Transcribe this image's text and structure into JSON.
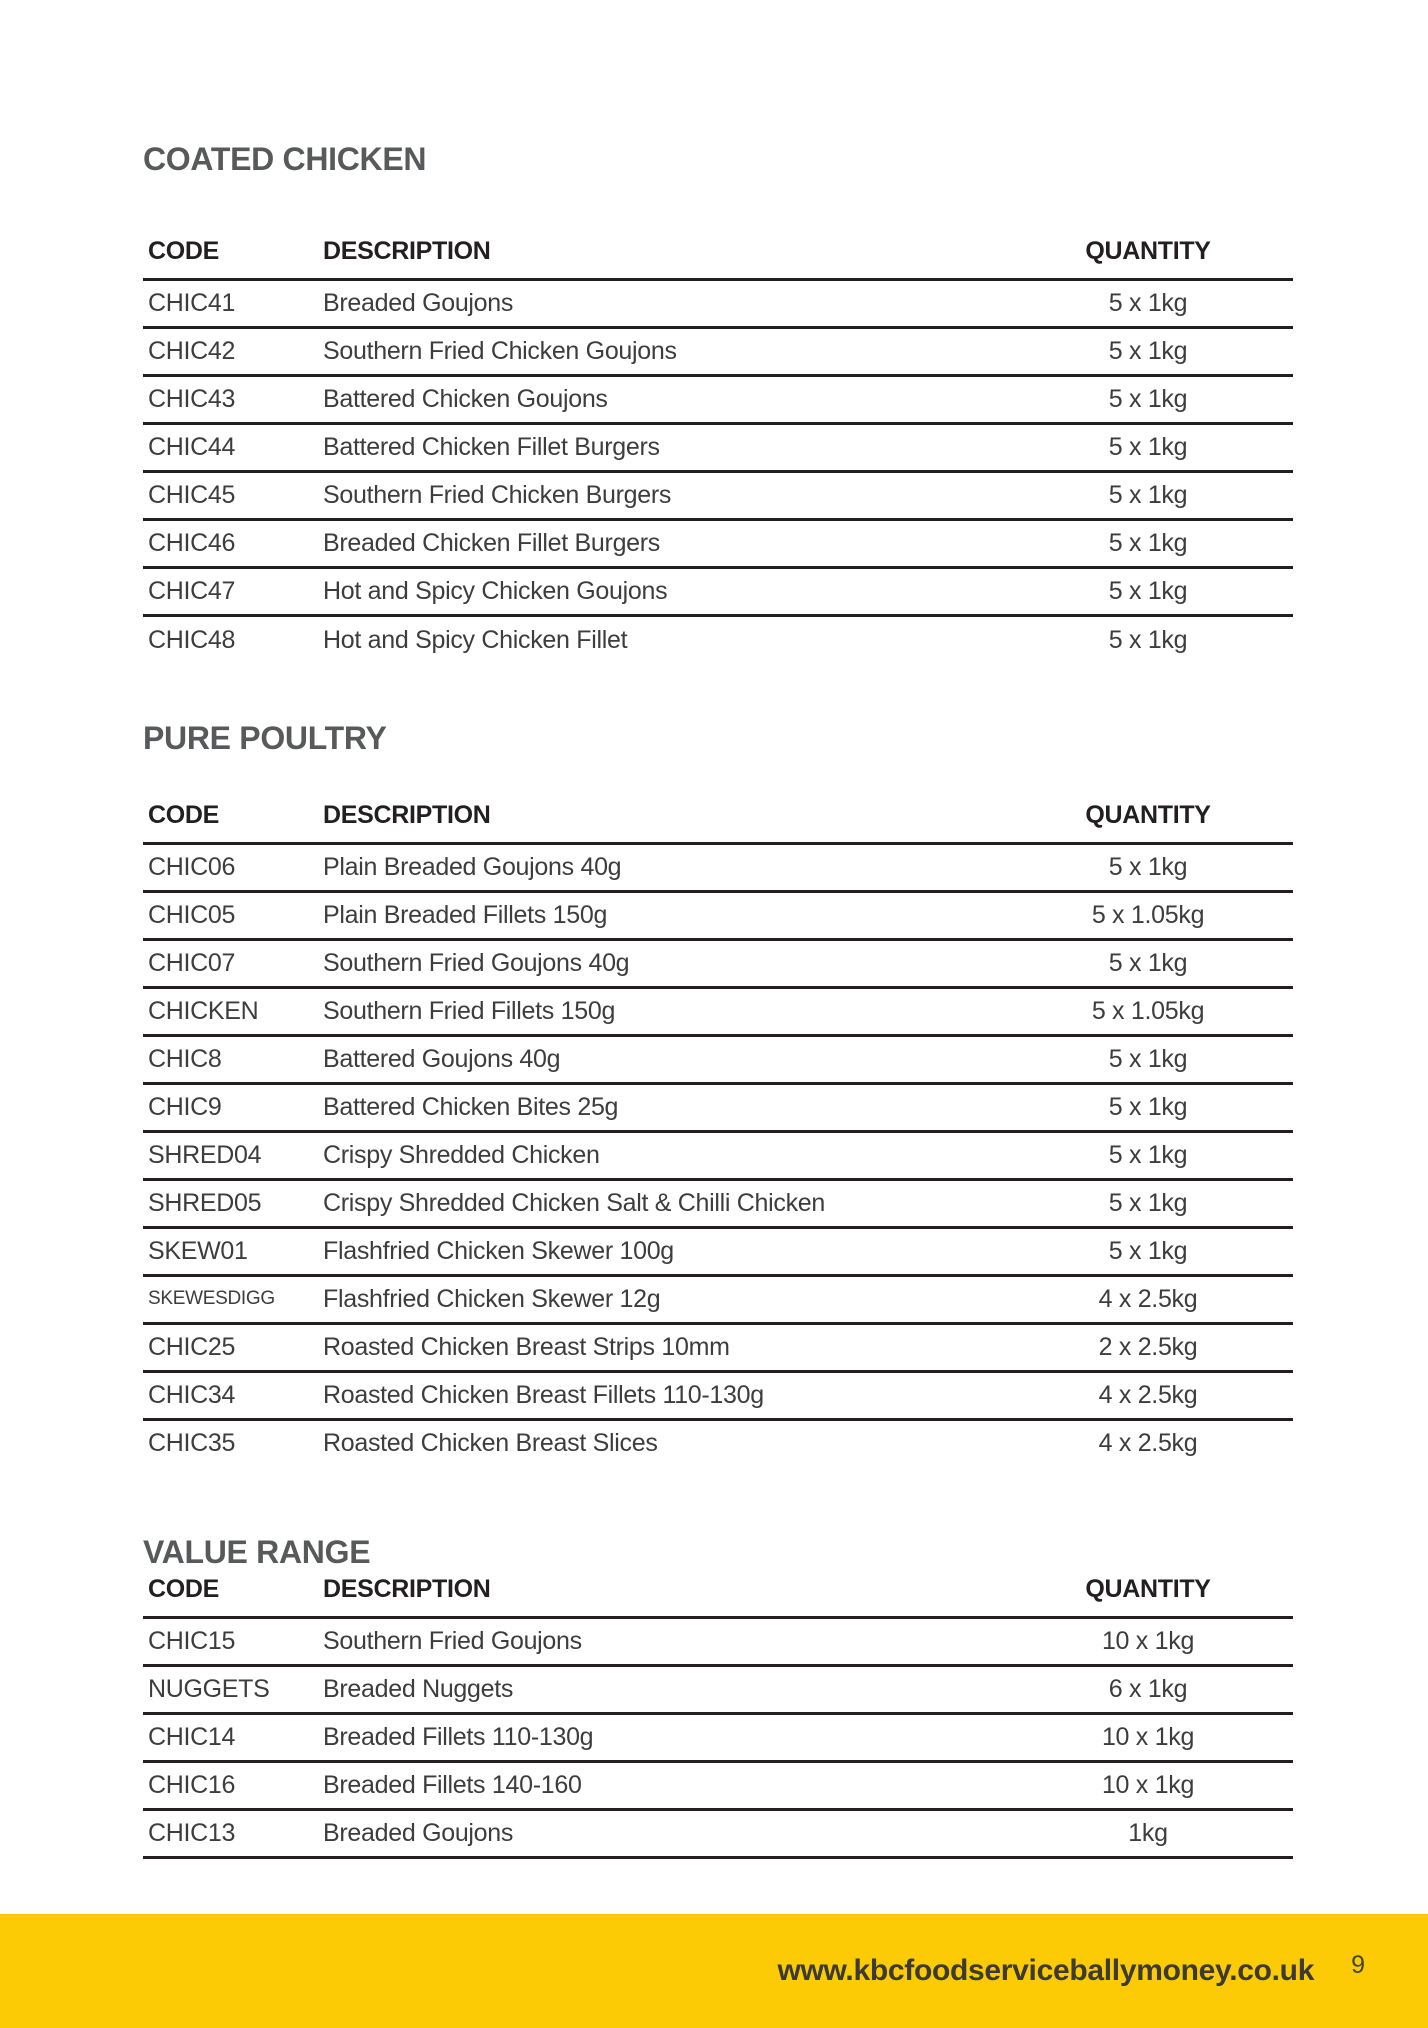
{
  "colors": {
    "accent_yellow": "#fccb06",
    "section_title_gray": "#58595b",
    "body_text_gray": "#3d3c3e",
    "rule_black": "#231f20"
  },
  "table_headers": {
    "code": "CODE",
    "description": "DESCRIPTION",
    "quantity": "QUANTITY"
  },
  "sections": [
    {
      "title": "COATED CHICKEN",
      "rows": [
        {
          "code": "CHIC41",
          "description": "Breaded Goujons",
          "quantity": "5 x 1kg"
        },
        {
          "code": "CHIC42",
          "description": "Southern Fried Chicken Goujons",
          "quantity": "5 x 1kg"
        },
        {
          "code": "CHIC43",
          "description": "Battered Chicken Goujons",
          "quantity": "5 x 1kg"
        },
        {
          "code": "CHIC44",
          "description": "Battered Chicken Fillet Burgers",
          "quantity": "5 x 1kg"
        },
        {
          "code": "CHIC45",
          "description": "Southern Fried Chicken Burgers",
          "quantity": "5 x 1kg"
        },
        {
          "code": "CHIC46",
          "description": "Breaded Chicken Fillet Burgers",
          "quantity": "5 x 1kg"
        },
        {
          "code": "CHIC47",
          "description": "Hot and Spicy Chicken Goujons",
          "quantity": "5 x 1kg"
        },
        {
          "code": "CHIC48",
          "description": "Hot and Spicy Chicken Fillet",
          "quantity": "5 x 1kg"
        }
      ]
    },
    {
      "title": "PURE POULTRY",
      "rows": [
        {
          "code": "CHIC06",
          "description": "Plain Breaded Goujons 40g",
          "quantity": "5 x 1kg"
        },
        {
          "code": "CHIC05",
          "description": "Plain Breaded Fillets 150g",
          "quantity": "5 x 1.05kg"
        },
        {
          "code": "CHIC07",
          "description": "Southern Fried Goujons 40g",
          "quantity": "5 x 1kg"
        },
        {
          "code": "CHICKEN",
          "description": "Southern Fried Fillets 150g",
          "quantity": "5 x 1.05kg"
        },
        {
          "code": "CHIC8",
          "description": "Battered Goujons 40g",
          "quantity": "5 x 1kg"
        },
        {
          "code": "CHIC9",
          "description": "Battered Chicken Bites 25g",
          "quantity": "5 x 1kg"
        },
        {
          "code": "SHRED04",
          "description": "Crispy Shredded Chicken",
          "quantity": "5 x 1kg"
        },
        {
          "code": "SHRED05",
          "description": "Crispy Shredded Chicken Salt & Chilli Chicken",
          "quantity": "5 x 1kg"
        },
        {
          "code": "SKEW01",
          "description": "Flashfried Chicken Skewer 100g",
          "quantity": "5 x 1kg"
        },
        {
          "code": "SKEWESDIGG",
          "description": "Flashfried Chicken Skewer 12g",
          "quantity": "4 x 2.5kg"
        },
        {
          "code": "CHIC25",
          "description": "Roasted Chicken Breast Strips 10mm",
          "quantity": "2 x 2.5kg"
        },
        {
          "code": "CHIC34",
          "description": "Roasted Chicken Breast Fillets 110-130g",
          "quantity": "4 x 2.5kg"
        },
        {
          "code": "CHIC35",
          "description": "Roasted Chicken Breast Slices",
          "quantity": "4 x 2.5kg"
        }
      ]
    },
    {
      "title": "VALUE RANGE",
      "rows": [
        {
          "code": "CHIC15",
          "description": "Southern Fried Goujons",
          "quantity": "10 x 1kg"
        },
        {
          "code": "NUGGETS",
          "description": "Breaded Nuggets",
          "quantity": "6 x 1kg"
        },
        {
          "code": "CHIC14",
          "description": "Breaded Fillets 110-130g",
          "quantity": "10 x 1kg"
        },
        {
          "code": "CHIC16",
          "description": "Breaded Fillets 140-160",
          "quantity": "10 x 1kg"
        },
        {
          "code": "CHIC13",
          "description": "Breaded Goujons",
          "quantity": "1kg"
        }
      ]
    }
  ],
  "footer": {
    "website": "www.kbcfoodserviceballymoney.co.uk",
    "page_number": "9"
  }
}
